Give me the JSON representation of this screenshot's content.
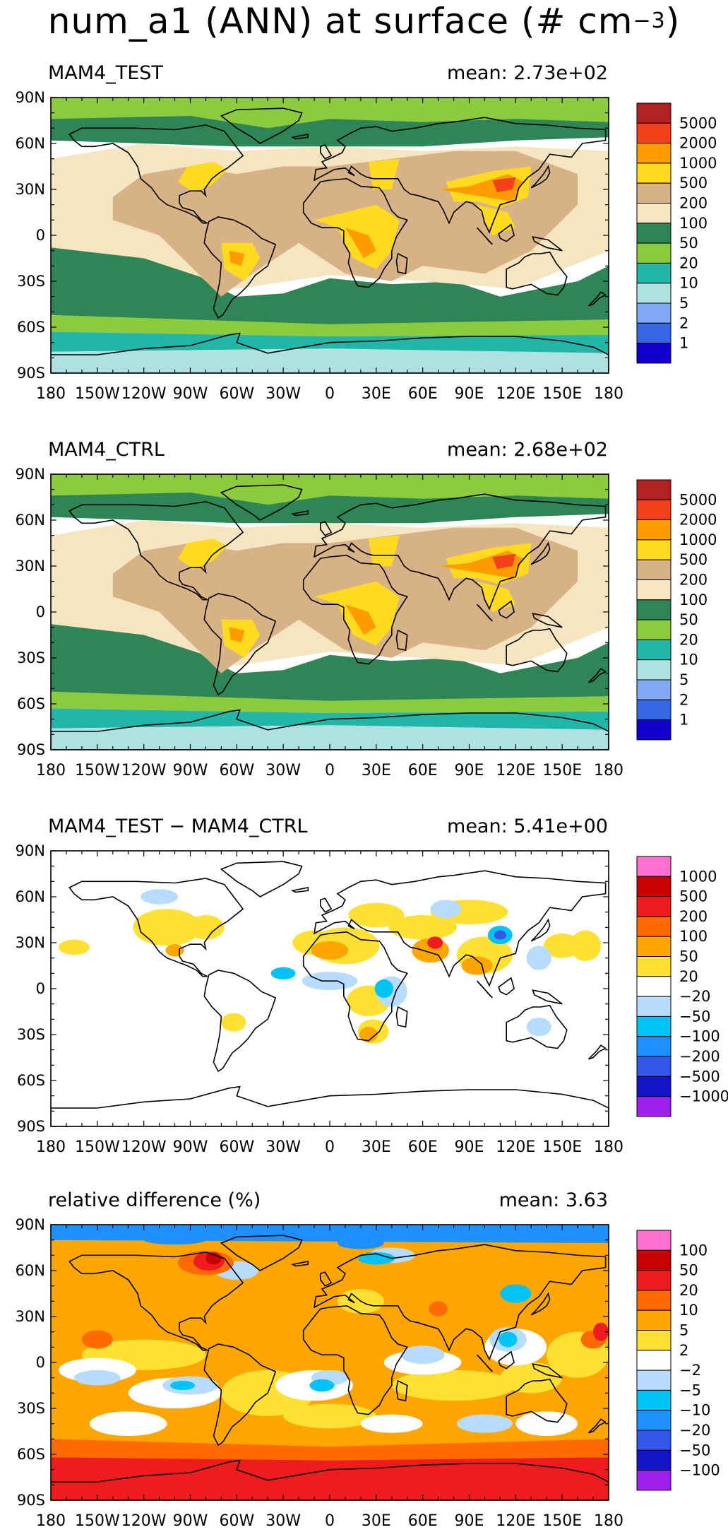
{
  "figure": {
    "title_main": "num_a1 (ANN) at surface (# cm",
    "title_exp": "−3",
    "title_close": ")"
  },
  "lat_ticks": [
    "90N",
    "60N",
    "30N",
    "0",
    "30S",
    "60S",
    "90S"
  ],
  "lon_ticks": [
    "180",
    "150W",
    "120W",
    "90W",
    "60W",
    "30W",
    "0",
    "30E",
    "60E",
    "90E",
    "120E",
    "150E",
    "180"
  ],
  "panels": [
    {
      "title": "MAM4_TEST",
      "mean_label": "mean:",
      "mean_value": "2.73e+02",
      "kind": "abs",
      "colorbar": {
        "colors": [
          "#b22222",
          "#f3421b",
          "#ff9d00",
          "#ffdb1f",
          "#d6b286",
          "#f5e5c0",
          "#2e8656",
          "#8ccb3e",
          "#21b6a8",
          "#b0e1e1",
          "#7fa8f5",
          "#3867e6",
          "#0f00d0"
        ],
        "labels": [
          "5000",
          "2000",
          "1000",
          "500",
          "200",
          "100",
          "50",
          "20",
          "10",
          "5",
          "2",
          "1"
        ]
      }
    },
    {
      "title": "MAM4_CTRL",
      "mean_label": "mean:",
      "mean_value": "2.68e+02",
      "kind": "abs",
      "colorbar": {
        "colors": [
          "#b22222",
          "#f3421b",
          "#ff9d00",
          "#ffdb1f",
          "#d6b286",
          "#f5e5c0",
          "#2e8656",
          "#8ccb3e",
          "#21b6a8",
          "#b0e1e1",
          "#7fa8f5",
          "#3867e6",
          "#0f00d0"
        ],
        "labels": [
          "5000",
          "2000",
          "1000",
          "500",
          "200",
          "100",
          "50",
          "20",
          "10",
          "5",
          "2",
          "1"
        ]
      }
    },
    {
      "title": "MAM4_TEST − MAM4_CTRL",
      "mean_label": "mean:",
      "mean_value": "5.41e+00",
      "kind": "diff",
      "colorbar": {
        "colors": [
          "#ff6fcf",
          "#c80000",
          "#ee1c1c",
          "#ff6b00",
          "#ffa600",
          "#ffe033",
          "#ffffff",
          "#b8dcff",
          "#00c3f5",
          "#1e90ff",
          "#3558ea",
          "#1414c8",
          "#a020f0"
        ],
        "labels": [
          "1000",
          "500",
          "200",
          "100",
          "50",
          "20",
          "−20",
          "−50",
          "−100",
          "−200",
          "−500",
          "−1000"
        ]
      }
    },
    {
      "title": "relative difference (%)",
      "mean_label": "mean:",
      "mean_value": "3.63",
      "kind": "rel",
      "colorbar": {
        "colors": [
          "#ff6fcf",
          "#c80000",
          "#ee1c1c",
          "#ff6b00",
          "#ffa600",
          "#ffe033",
          "#ffffff",
          "#b8dcff",
          "#00c3f5",
          "#1e90ff",
          "#3558ea",
          "#1414c8",
          "#a020f0"
        ],
        "labels": [
          "100",
          "50",
          "20",
          "10",
          "5",
          "2",
          "−2",
          "−5",
          "−10",
          "−20",
          "−50",
          "−100"
        ]
      }
    }
  ]
}
